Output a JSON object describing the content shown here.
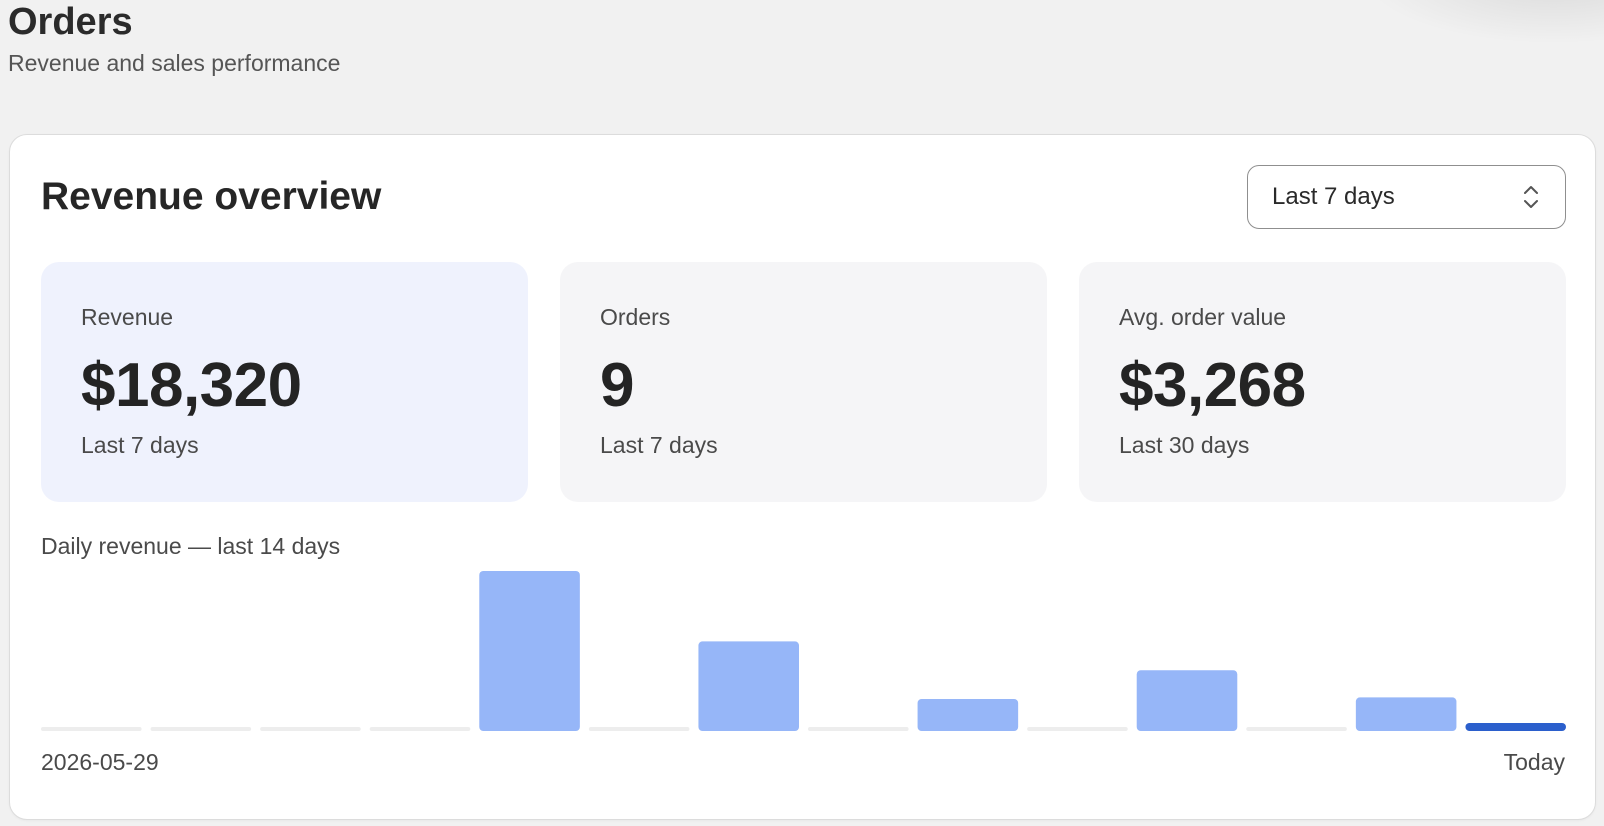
{
  "header": {
    "title": "Orders",
    "subtitle": "Revenue and sales performance"
  },
  "overview": {
    "title": "Revenue overview",
    "range_select": {
      "value": "Last 7 days",
      "icon": "chevron-up-down-icon"
    },
    "stats": [
      {
        "label": "Revenue",
        "value": "$18,320",
        "sub": "Last 7 days",
        "highlight": true
      },
      {
        "label": "Orders",
        "value": "9",
        "sub": "Last 7 days",
        "highlight": false
      },
      {
        "label": "Avg. order value",
        "value": "$3,268",
        "sub": "Last 30 days",
        "highlight": false
      }
    ],
    "chart_label": "Daily revenue — last 14 days",
    "axis_start": "2026-05-29",
    "axis_end": "Today"
  },
  "colors": {
    "bar": "#96b6f8",
    "bar_today": "#2b5fcc",
    "bar_empty": "#ededed",
    "highlight_card": "#eff2fd"
  },
  "chart_data": {
    "type": "bar",
    "title": "Daily revenue — last 14 days",
    "x_start": "2026-05-29",
    "x_end": "Today",
    "values": [
      0,
      0,
      0,
      0,
      100,
      0,
      56,
      0,
      20,
      0,
      38,
      0,
      21,
      5
    ],
    "highlight_last": true,
    "grid": false,
    "ylim": [
      0,
      100
    ]
  }
}
